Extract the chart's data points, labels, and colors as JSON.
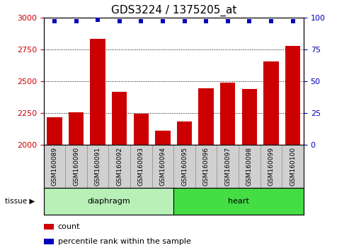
{
  "title": "GDS3224 / 1375205_at",
  "samples": [
    "GSM160089",
    "GSM160090",
    "GSM160091",
    "GSM160092",
    "GSM160093",
    "GSM160094",
    "GSM160095",
    "GSM160096",
    "GSM160097",
    "GSM160098",
    "GSM160099",
    "GSM160100"
  ],
  "counts": [
    2220,
    2255,
    2830,
    2415,
    2245,
    2110,
    2185,
    2445,
    2490,
    2440,
    2655,
    2775
  ],
  "percentile_ranks": [
    97,
    97,
    98,
    97,
    97,
    97,
    97,
    97,
    97,
    97,
    97,
    97
  ],
  "ylim_left": [
    2000,
    3000
  ],
  "ylim_right": [
    0,
    100
  ],
  "yticks_left": [
    2000,
    2250,
    2500,
    2750,
    3000
  ],
  "yticks_right": [
    0,
    25,
    50,
    75,
    100
  ],
  "bar_color": "#cc0000",
  "dot_color": "#0000bb",
  "diaphragm_color": "#b8f0b8",
  "heart_color": "#44dd44",
  "tissue_groups": [
    {
      "label": "diaphragm",
      "start": 0,
      "end": 6,
      "color_key": "diaphragm_color"
    },
    {
      "label": "heart",
      "start": 6,
      "end": 12,
      "color_key": "heart_color"
    }
  ],
  "legend_bar_label": "count",
  "legend_dot_label": "percentile rank within the sample",
  "tissue_label": "tissue",
  "tick_fontsize": 8,
  "sample_fontsize": 6.5,
  "title_fontsize": 11
}
